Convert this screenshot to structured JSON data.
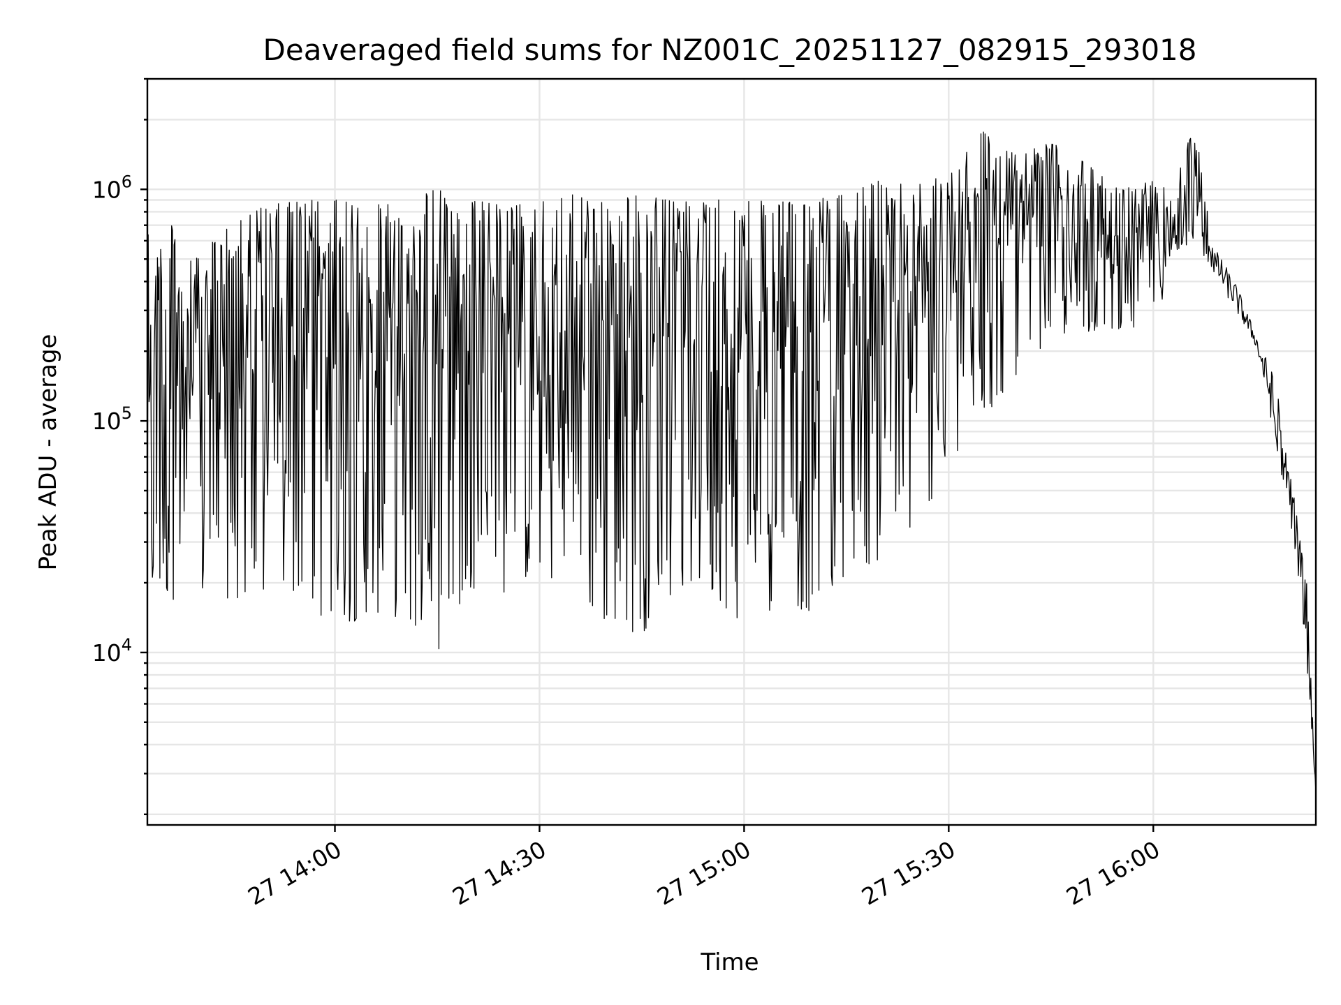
{
  "chart_data": {
    "type": "line",
    "title": "Deaveraged field sums for NZ001C_20251127_082915_293018",
    "xlabel": "Time",
    "ylabel": "Peak ADU - average",
    "yscale": "log",
    "ylim": [
      1800,
      3000000
    ],
    "xlim": [
      "2025-11-27 13:32:30",
      "2025-11-27 16:23:50"
    ],
    "grid": true,
    "legend": "none",
    "line_color": "#000000",
    "x_ticks": [
      {
        "time": "2025-11-27 14:00",
        "label": "27 14:00"
      },
      {
        "time": "2025-11-27 14:30",
        "label": "27 14:30"
      },
      {
        "time": "2025-11-27 15:00",
        "label": "27 15:00"
      },
      {
        "time": "2025-11-27 15:30",
        "label": "27 15:30"
      },
      {
        "time": "2025-11-27 16:00",
        "label": "27 16:00"
      }
    ],
    "y_ticks": [
      {
        "value": 10000,
        "base": "10",
        "exp": "4"
      },
      {
        "value": 100000,
        "base": "10",
        "exp": "5"
      },
      {
        "value": 1000000,
        "base": "10",
        "exp": "6"
      }
    ],
    "series": [
      {
        "x": [
          "2025-11-27 13:32:30",
          "2025-11-27 13:36:00",
          "2025-11-27 13:40:00",
          "2025-11-27 13:45:00",
          "2025-11-27 13:50:00",
          "2025-11-27 13:55:00",
          "2025-11-27 14:00:00",
          "2025-11-27 14:05:00",
          "2025-11-27 14:10:00",
          "2025-11-27 14:15:00",
          "2025-11-27 14:20:00",
          "2025-11-27 14:25:00",
          "2025-11-27 14:30:00",
          "2025-11-27 14:35:00",
          "2025-11-27 14:40:00",
          "2025-11-27 14:45:00",
          "2025-11-27 14:50:00",
          "2025-11-27 14:55:00",
          "2025-11-27 15:00:00",
          "2025-11-27 15:05:00",
          "2025-11-27 15:10:00",
          "2025-11-27 15:15:00",
          "2025-11-27 15:20:00",
          "2025-11-27 15:25:00",
          "2025-11-27 15:30:00",
          "2025-11-27 15:35:00",
          "2025-11-27 15:40:00",
          "2025-11-27 15:45:00",
          "2025-11-27 15:50:00",
          "2025-11-27 15:55:00",
          "2025-11-27 16:00:00",
          "2025-11-27 16:03:00",
          "2025-11-27 16:06:00",
          "2025-11-27 16:09:00",
          "2025-11-27 16:12:00",
          "2025-11-27 16:15:00",
          "2025-11-27 16:18:00",
          "2025-11-27 16:21:00",
          "2025-11-27 16:22:30",
          "2025-11-27 16:23:50"
        ],
        "low": [
          15000,
          17000,
          16000,
          17000,
          16000,
          18000,
          12000,
          15000,
          14000,
          10000,
          19000,
          18000,
          22000,
          17000,
          13000,
          12000,
          19000,
          18000,
          13000,
          16000,
          15000,
          22000,
          25000,
          35000,
          60000,
          100000,
          160000,
          230000,
          240000,
          250000,
          240000,
          520000,
          600000,
          420000,
          300000,
          210000,
          80000,
          25000,
          9000,
          2500
        ],
        "high": [
          650000,
          700000,
          500000,
          750000,
          850000,
          900000,
          900000,
          850000,
          920000,
          1000000,
          900000,
          850000,
          880000,
          950000,
          900000,
          950000,
          880000,
          900000,
          900000,
          880000,
          900000,
          950000,
          1100000,
          1050000,
          1200000,
          1800000,
          1400000,
          1600000,
          1300000,
          1000000,
          1100000,
          1000000,
          1950000,
          560000,
          400000,
          240000,
          150000,
          40000,
          20000,
          2500
        ]
      }
    ]
  }
}
